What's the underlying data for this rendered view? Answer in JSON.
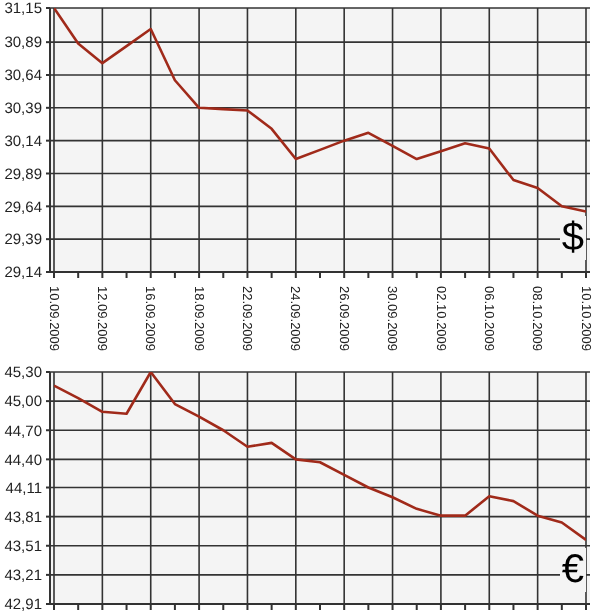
{
  "chart_data": [
    {
      "type": "line",
      "categories": [
        "10.09.2009",
        null,
        "12.09.2009",
        null,
        "16.09.2009",
        null,
        "18.09.2009",
        null,
        "22.09.2009",
        null,
        "24.09.2009",
        null,
        "26.09.2009",
        null,
        "30.09.2009",
        null,
        "02.10.2009",
        null,
        "06.10.2009",
        null,
        "08.10.2009",
        null,
        "10.10.2009"
      ],
      "series": [
        {
          "color": "#a02a1a",
          "values": [
            31.15,
            30.88,
            30.73,
            30.86,
            30.99,
            30.6,
            30.39,
            30.38,
            30.37,
            30.23,
            30.0,
            30.07,
            30.14,
            30.2,
            30.1,
            30.0,
            30.06,
            30.12,
            30.08,
            29.84,
            29.78,
            29.64,
            29.6
          ]
        }
      ],
      "ylim": [
        29.14,
        31.15
      ],
      "yticks": [
        {
          "value": 29.14,
          "label": "29,14"
        },
        {
          "value": 29.39,
          "label": "29,39"
        },
        {
          "value": 29.64,
          "label": "29,64"
        },
        {
          "value": 29.89,
          "label": "29,89"
        },
        {
          "value": 30.14,
          "label": "30,14"
        },
        {
          "value": 30.39,
          "label": "30,39"
        },
        {
          "value": 30.64,
          "label": "30,64"
        },
        {
          "value": 30.89,
          "label": "30,89"
        },
        {
          "value": 31.15,
          "label": "31,15"
        }
      ],
      "grid": true,
      "marker": "none",
      "annotations": [
        "$"
      ]
    },
    {
      "type": "line",
      "categories": [
        "10.09.2009",
        null,
        "12.09.2009",
        null,
        "16.09.2009",
        null,
        "18.09.2009",
        null,
        "22.09.2009",
        null,
        "24.09.2009",
        null,
        "26.09.2009",
        null,
        "30.09.2009",
        null,
        "02.10.2009",
        null,
        "06.10.2009",
        null,
        "08.10.2009",
        null,
        "10.10.2009"
      ],
      "series": [
        {
          "color": "#a02a1a",
          "values": [
            45.16,
            45.03,
            44.89,
            44.87,
            45.3,
            44.97,
            44.84,
            44.7,
            44.53,
            44.57,
            44.4,
            44.37,
            44.24,
            44.11,
            44.01,
            43.89,
            43.82,
            43.82,
            44.02,
            43.97,
            43.82,
            43.75,
            43.57
          ]
        }
      ],
      "ylim": [
        42.91,
        45.3
      ],
      "yticks": [
        {
          "value": 42.91,
          "label": "42,91"
        },
        {
          "value": 43.21,
          "label": "43,21"
        },
        {
          "value": 43.51,
          "label": "43,51"
        },
        {
          "value": 43.81,
          "label": "43,81"
        },
        {
          "value": 44.11,
          "label": "44,11"
        },
        {
          "value": 44.4,
          "label": "44,40"
        },
        {
          "value": 44.7,
          "label": "44,70"
        },
        {
          "value": 45.0,
          "label": "45,00"
        },
        {
          "value": 45.3,
          "label": "45,30"
        }
      ],
      "grid": true,
      "marker": "none",
      "tick_labels": "y",
      "annotations": [
        "€"
      ]
    }
  ]
}
